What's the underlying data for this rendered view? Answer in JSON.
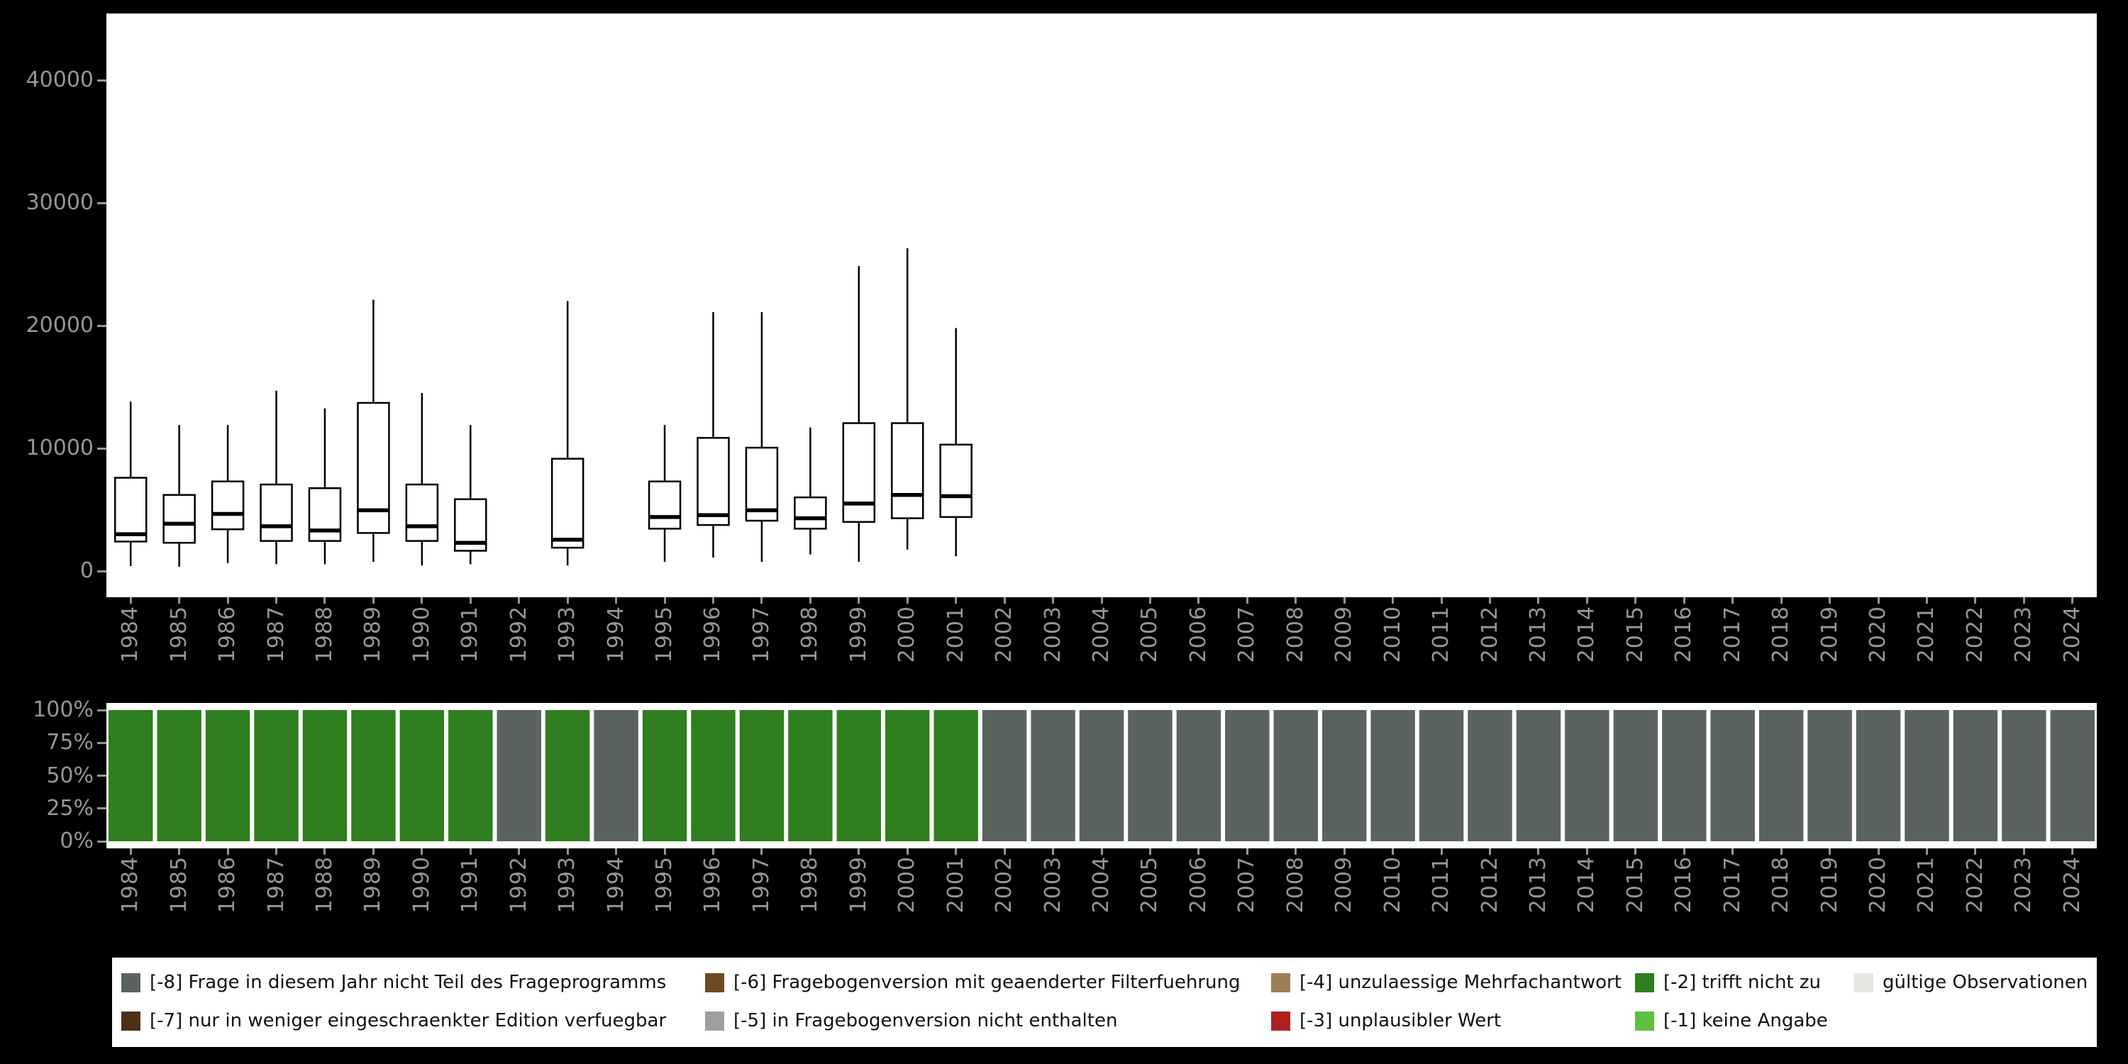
{
  "page": {
    "background": "#000000",
    "panel_background": "#ffffff",
    "tick_text_color": "#969696"
  },
  "years": [
    "1984",
    "1985",
    "1986",
    "1987",
    "1988",
    "1989",
    "1990",
    "1991",
    "1992",
    "1993",
    "1994",
    "1995",
    "1996",
    "1997",
    "1998",
    "1999",
    "2000",
    "2001",
    "2002",
    "2003",
    "2004",
    "2005",
    "2006",
    "2007",
    "2008",
    "2009",
    "2010",
    "2011",
    "2012",
    "2013",
    "2014",
    "2015",
    "2016",
    "2017",
    "2018",
    "2019",
    "2020",
    "2021",
    "2022",
    "2023",
    "2024"
  ],
  "axes": {
    "top_ytick_labels": [
      "0",
      "10000",
      "20000",
      "30000",
      "40000"
    ],
    "top_ytick_values": [
      0,
      10000,
      20000,
      30000,
      40000
    ],
    "bottom_ytick_labels": [
      "100%",
      "75%",
      "50%",
      "25%",
      "0%"
    ],
    "bottom_ytick_values": [
      100,
      75,
      50,
      25,
      0
    ]
  },
  "bar_colors": {
    "green": "#2f7e1f",
    "gray": "#5b6360"
  },
  "chart_data": [
    {
      "type": "boxplot",
      "title": "",
      "xlabel": "",
      "ylabel": "",
      "ylim": [
        0,
        44500
      ],
      "ytick_values": [
        0,
        10000,
        20000,
        30000,
        40000
      ],
      "x_categories": [
        "1984",
        "1985",
        "1986",
        "1987",
        "1988",
        "1989",
        "1990",
        "1991",
        "1992",
        "1993",
        "1994",
        "1995",
        "1996",
        "1997",
        "1998",
        "1999",
        "2000",
        "2001",
        "2002",
        "2003",
        "2004",
        "2005",
        "2006",
        "2007",
        "2008",
        "2009",
        "2010",
        "2011",
        "2012",
        "2013",
        "2014",
        "2015",
        "2016",
        "2017",
        "2018",
        "2019",
        "2020",
        "2021",
        "2022",
        "2023",
        "2024"
      ],
      "boxes": [
        {
          "year": "1984",
          "low": 400,
          "q1": 2400,
          "median": 3000,
          "q3": 7600,
          "high": 13800
        },
        {
          "year": "1985",
          "low": 350,
          "q1": 2300,
          "median": 3850,
          "q3": 6200,
          "high": 11900
        },
        {
          "year": "1986",
          "low": 650,
          "q1": 3400,
          "median": 4650,
          "q3": 7300,
          "high": 11900
        },
        {
          "year": "1987",
          "low": 550,
          "q1": 2450,
          "median": 3650,
          "q3": 7050,
          "high": 14700
        },
        {
          "year": "1988",
          "low": 550,
          "q1": 2450,
          "median": 3300,
          "q3": 6750,
          "high": 13250
        },
        {
          "year": "1989",
          "low": 750,
          "q1": 3100,
          "median": 4950,
          "q3": 13700,
          "high": 22100
        },
        {
          "year": "1990",
          "low": 450,
          "q1": 2450,
          "median": 3650,
          "q3": 7050,
          "high": 14500
        },
        {
          "year": "1991",
          "low": 550,
          "q1": 1650,
          "median": 2300,
          "q3": 5850,
          "high": 11900
        },
        {
          "year": "1993",
          "low": 450,
          "q1": 1900,
          "median": 2550,
          "q3": 9150,
          "high": 22000
        },
        {
          "year": "1995",
          "low": 750,
          "q1": 3450,
          "median": 4400,
          "q3": 7300,
          "high": 11900
        },
        {
          "year": "1996",
          "low": 1100,
          "q1": 3750,
          "median": 4550,
          "q3": 10850,
          "high": 21100
        },
        {
          "year": "1997",
          "low": 750,
          "q1": 4100,
          "median": 4950,
          "q3": 10050,
          "high": 21100
        },
        {
          "year": "1998",
          "low": 1350,
          "q1": 3450,
          "median": 4300,
          "q3": 6000,
          "high": 11700
        },
        {
          "year": "1999",
          "low": 750,
          "q1": 4000,
          "median": 5500,
          "q3": 12050,
          "high": 24850
        },
        {
          "year": "2000",
          "low": 1750,
          "q1": 4300,
          "median": 6200,
          "q3": 12050,
          "high": 26300
        },
        {
          "year": "2001",
          "low": 1200,
          "q1": 4400,
          "median": 6100,
          "q3": 10300,
          "high": 19800
        }
      ]
    },
    {
      "type": "bar",
      "subtype": "stacked-percent",
      "title": "",
      "ylim": [
        0,
        100
      ],
      "ytick_labels": [
        "0%",
        "25%",
        "50%",
        "75%",
        "100%"
      ],
      "bars": [
        {
          "year": "1984",
          "key": "green",
          "value": 100
        },
        {
          "year": "1985",
          "key": "green",
          "value": 100
        },
        {
          "year": "1986",
          "key": "green",
          "value": 100
        },
        {
          "year": "1987",
          "key": "green",
          "value": 100
        },
        {
          "year": "1988",
          "key": "green",
          "value": 100
        },
        {
          "year": "1989",
          "key": "green",
          "value": 100
        },
        {
          "year": "1990",
          "key": "green",
          "value": 100
        },
        {
          "year": "1991",
          "key": "green",
          "value": 100
        },
        {
          "year": "1992",
          "key": "gray",
          "value": 100
        },
        {
          "year": "1993",
          "key": "green",
          "value": 100
        },
        {
          "year": "1994",
          "key": "gray",
          "value": 100
        },
        {
          "year": "1995",
          "key": "green",
          "value": 100
        },
        {
          "year": "1996",
          "key": "green",
          "value": 100
        },
        {
          "year": "1997",
          "key": "green",
          "value": 100
        },
        {
          "year": "1998",
          "key": "green",
          "value": 100
        },
        {
          "year": "1999",
          "key": "green",
          "value": 100
        },
        {
          "year": "2000",
          "key": "green",
          "value": 100
        },
        {
          "year": "2001",
          "key": "green",
          "value": 100
        },
        {
          "year": "2002",
          "key": "gray",
          "value": 100
        },
        {
          "year": "2003",
          "key": "gray",
          "value": 100
        },
        {
          "year": "2004",
          "key": "gray",
          "value": 100
        },
        {
          "year": "2005",
          "key": "gray",
          "value": 100
        },
        {
          "year": "2006",
          "key": "gray",
          "value": 100
        },
        {
          "year": "2007",
          "key": "gray",
          "value": 100
        },
        {
          "year": "2008",
          "key": "gray",
          "value": 100
        },
        {
          "year": "2009",
          "key": "gray",
          "value": 100
        },
        {
          "year": "2010",
          "key": "gray",
          "value": 100
        },
        {
          "year": "2011",
          "key": "gray",
          "value": 100
        },
        {
          "year": "2012",
          "key": "gray",
          "value": 100
        },
        {
          "year": "2013",
          "key": "gray",
          "value": 100
        },
        {
          "year": "2014",
          "key": "gray",
          "value": 100
        },
        {
          "year": "2015",
          "key": "gray",
          "value": 100
        },
        {
          "year": "2016",
          "key": "gray",
          "value": 100
        },
        {
          "year": "2017",
          "key": "gray",
          "value": 100
        },
        {
          "year": "2018",
          "key": "gray",
          "value": 100
        },
        {
          "year": "2019",
          "key": "gray",
          "value": 100
        },
        {
          "year": "2020",
          "key": "gray",
          "value": 100
        },
        {
          "year": "2021",
          "key": "gray",
          "value": 100
        },
        {
          "year": "2022",
          "key": "gray",
          "value": 100
        },
        {
          "year": "2023",
          "key": "gray",
          "value": 100
        },
        {
          "year": "2024",
          "key": "gray",
          "value": 100
        }
      ]
    }
  ],
  "legend": {
    "background": "#ffffff",
    "items": [
      {
        "code": "-8",
        "label": "[-8] Frage in diesem Jahr nicht Teil des Frageprogramms",
        "color": "#5b6360"
      },
      {
        "code": "-7",
        "label": "[-7] nur in weniger eingeschraenkter Edition verfuegbar",
        "color": "#4f3014"
      },
      {
        "code": "-6",
        "label": "[-6] Fragebogenversion mit geaenderter Filterfuehrung",
        "color": "#6e4a24"
      },
      {
        "code": "-5",
        "label": "[-5] in Fragebogenversion nicht enthalten",
        "color": "#9e9e9e"
      },
      {
        "code": "-4",
        "label": "[-4] unzulaessige Mehrfachantwort",
        "color": "#9c7e57"
      },
      {
        "code": "-3",
        "label": "[-3] unplausibler Wert",
        "color": "#b02020"
      },
      {
        "code": "-2",
        "label": "[-2] trifft nicht zu",
        "color": "#2f7e1f"
      },
      {
        "code": "-1",
        "label": "[-1] keine Angabe",
        "color": "#5fbf40"
      },
      {
        "code": "valid",
        "label": "gültige Observationen",
        "color": "#e7e7e2"
      }
    ]
  }
}
